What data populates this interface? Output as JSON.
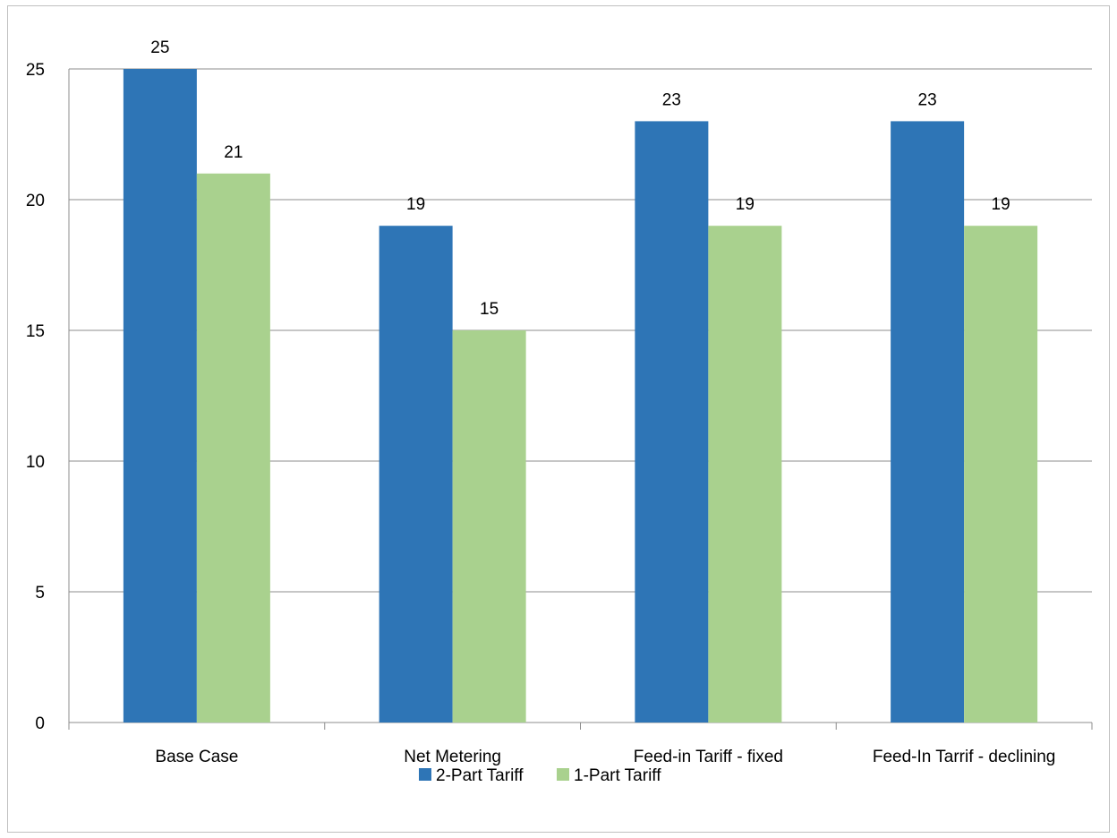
{
  "chart_data": {
    "type": "bar",
    "categories": [
      "Base Case",
      "Net Metering",
      "Feed-in Tariff - fixed",
      "Feed-In Tarrif - declining"
    ],
    "series": [
      {
        "name": "2-Part Tariff",
        "values": [
          25,
          19,
          23,
          23
        ],
        "color": "#2E75B6"
      },
      {
        "name": "1-Part Tariff",
        "values": [
          21,
          15,
          19,
          19
        ],
        "color": "#A9D18E"
      }
    ],
    "y_ticks": [
      "0",
      "5",
      "10",
      "15",
      "20",
      "25"
    ],
    "ylim": [
      0,
      25
    ],
    "grid": true,
    "legend": "bottom",
    "data_labels": true
  }
}
